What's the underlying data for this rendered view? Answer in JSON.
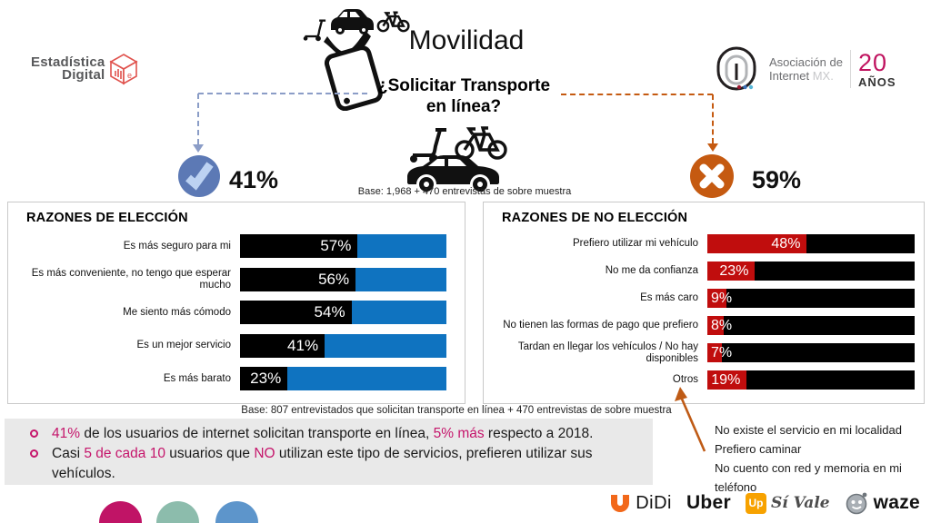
{
  "header": {
    "logo_left": {
      "line1": "Estadística",
      "line2": "Digital",
      "cube_letter": "e"
    },
    "title": "Movilidad",
    "subtitle_line1": "¿Solicitar Transporte",
    "subtitle_line2": "en línea?",
    "logo_right": {
      "name_line1": "Asociación de",
      "name_line2": "Internet ",
      "name_suffix": "MX.",
      "years_number": "20",
      "years_label": "AÑOS"
    },
    "yes_pct": "41%",
    "no_pct": "59%",
    "base_note": "Base: 1,968 + 470 entrevistas de sobre muestra"
  },
  "chart_data": [
    {
      "type": "bar",
      "orientation": "horizontal",
      "title": "RAZONES DE ELECCIÓN",
      "categories": [
        "Es más seguro para mi",
        "Es más conveniente, no tengo que esperar mucho",
        "Me siento más cómodo",
        "Es un mejor servicio",
        "Es más barato"
      ],
      "values": [
        57,
        56,
        54,
        41,
        23
      ],
      "value_suffix": "%",
      "xlim": [
        0,
        100
      ],
      "value_color": "#000000",
      "remainder_color": "#0F73C0",
      "grid": false,
      "legend": false
    },
    {
      "type": "bar",
      "orientation": "horizontal",
      "title": "RAZONES DE NO ELECCIÓN",
      "categories": [
        "Prefiero utilizar mi vehículo",
        "No me da confianza",
        "Es más caro",
        "No tienen las formas de pago que prefiero",
        "Tardan en llegar los vehículos / No hay disponibles",
        "Otros"
      ],
      "values": [
        48,
        23,
        9,
        8,
        7,
        19
      ],
      "value_suffix": "%",
      "xlim": [
        0,
        100
      ],
      "value_color": "#C00D0D",
      "remainder_color": "#000000",
      "grid": false,
      "legend": false
    }
  ],
  "base_note_bottom": "Base: 807 entrevistados que solicitan transporte en línea + 470 entrevistas de sobre muestra",
  "callouts": {
    "bullets": [
      {
        "segments": [
          {
            "text": "41%",
            "highlight": true
          },
          {
            "text": " de los usuarios de internet solicitan transporte en línea, ",
            "highlight": false
          },
          {
            "text": "5% más",
            "highlight": true
          },
          {
            "text": " respecto a 2018.",
            "highlight": false
          }
        ]
      },
      {
        "segments": [
          {
            "text": "Casi ",
            "highlight": false
          },
          {
            "text": "5 de cada 10",
            "highlight": true
          },
          {
            "text": " usuarios que ",
            "highlight": false
          },
          {
            "text": "NO",
            "highlight": true
          },
          {
            "text": " utilizan este tipo de servicios, prefieren utilizar sus vehículos.",
            "highlight": false
          }
        ]
      }
    ]
  },
  "other_reasons": [
    "No existe el servicio en mi localidad",
    "Prefiero caminar",
    "No cuento con red y memoria en mi teléfono"
  ],
  "footer": {
    "didi_label": "DiDi",
    "uber_label": "Uber",
    "up_label": "Up",
    "sivale_label": "Sí Vale",
    "waze_label": "waze"
  },
  "colors": {
    "yes_circle": "#5C79B5",
    "check_mark": "#BCD2F2",
    "no_circle": "#C55A11",
    "blue_bar": "#0F73C0",
    "red_bar": "#C00D0D",
    "highlight_magenta": "#C5156B",
    "deco_pink": "#C01466",
    "deco_teal": "#8CBCAC",
    "deco_blue": "#5D95CB"
  }
}
